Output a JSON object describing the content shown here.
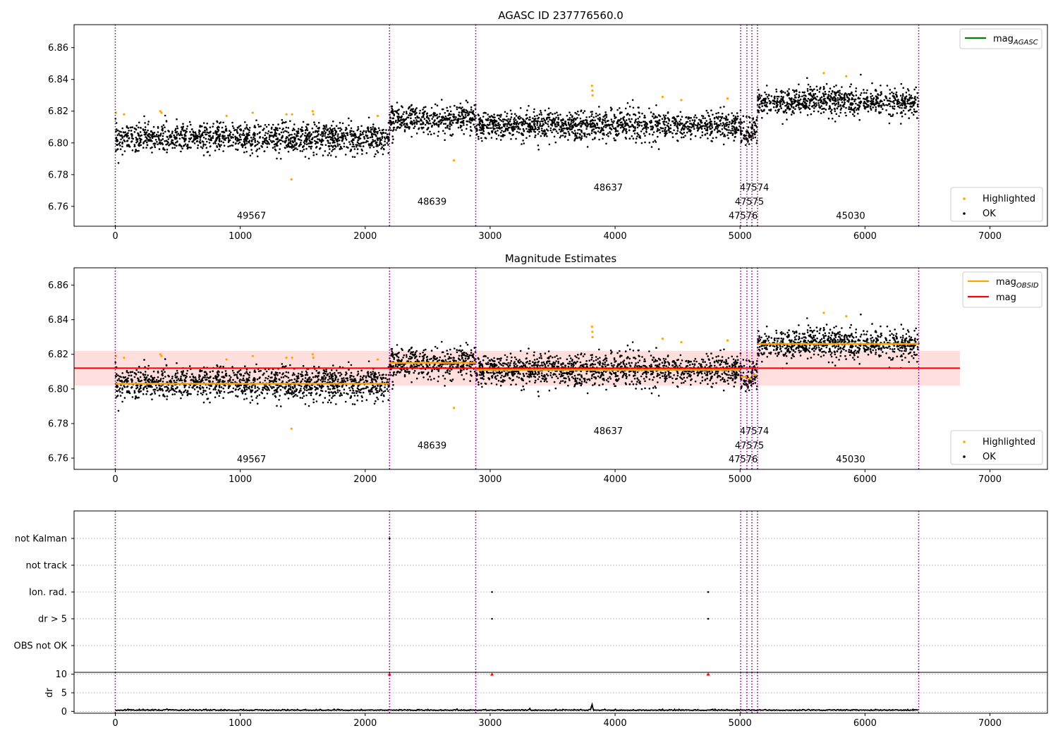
{
  "figure": {
    "title_top": "AGASC ID 237776560.0",
    "title_mid": "Magnitude Estimates"
  },
  "chart_data": [
    {
      "type": "scatter",
      "title": "AGASC ID 237776560.0",
      "xlabel": "",
      "ylabel": "",
      "xlim": [
        -330,
        7460
      ],
      "ylim": [
        6.7475,
        6.8745
      ],
      "x_ticks": [
        0,
        1000,
        2000,
        3000,
        4000,
        5000,
        6000,
        7000
      ],
      "y_ticks": [
        6.76,
        6.78,
        6.8,
        6.82,
        6.84,
        6.86
      ],
      "y_tick_labels": [
        "6.76",
        "6.78",
        "6.80",
        "6.82",
        "6.84",
        "6.86"
      ],
      "grid": false,
      "legend": {
        "upper_right": [
          {
            "label": "mag",
            "subscript": "AGASC",
            "color": "#008000",
            "kind": "line"
          }
        ],
        "lower_right": [
          {
            "label": "Highlighted",
            "color": "#ffa500",
            "kind": "dot"
          },
          {
            "label": "OK",
            "color": "#000000",
            "kind": "dot"
          }
        ]
      },
      "obs_boundaries": [
        0,
        2195,
        2885,
        5005,
        5055,
        5095,
        5140,
        6430
      ],
      "obs_labels": [
        {
          "text": "49567",
          "x": 1090,
          "y": 6.7522
        },
        {
          "text": "48639",
          "x": 2535,
          "y": 6.761
        },
        {
          "text": "48637",
          "x": 3945,
          "y": 6.77
        },
        {
          "text": "47574",
          "x": 5115,
          "y": 6.77
        },
        {
          "text": "47575",
          "x": 5075,
          "y": 6.761
        },
        {
          "text": "47576",
          "x": 5025,
          "y": 6.7522
        },
        {
          "text": "45030",
          "x": 5885,
          "y": 6.7522
        }
      ],
      "segments": [
        {
          "obsid": "49567",
          "x_range": [
            0,
            2195
          ],
          "mean": 6.803,
          "spread": 0.0045
        },
        {
          "obsid": "48639",
          "x_range": [
            2195,
            2885
          ],
          "mean": 6.815,
          "spread": 0.0045
        },
        {
          "obsid": "48637",
          "x_range": [
            2885,
            5005
          ],
          "mean": 6.811,
          "spread": 0.0045
        },
        {
          "obsid": "47576",
          "x_range": [
            5005,
            5055
          ],
          "mean": 6.807,
          "spread": 0.0045
        },
        {
          "obsid": "47575",
          "x_range": [
            5055,
            5095
          ],
          "mean": 6.806,
          "spread": 0.0045
        },
        {
          "obsid": "47574",
          "x_range": [
            5095,
            5140
          ],
          "mean": 6.808,
          "spread": 0.0045
        },
        {
          "obsid": "45030",
          "x_range": [
            5140,
            6430
          ],
          "mean": 6.826,
          "spread": 0.0045
        }
      ],
      "highlighted_points": [
        {
          "x": 5,
          "y": 6.819
        },
        {
          "x": 70,
          "y": 6.818
        },
        {
          "x": 360,
          "y": 6.82
        },
        {
          "x": 370,
          "y": 6.819
        },
        {
          "x": 890,
          "y": 6.817
        },
        {
          "x": 1100,
          "y": 6.819
        },
        {
          "x": 1370,
          "y": 6.818
        },
        {
          "x": 1410,
          "y": 6.777
        },
        {
          "x": 1415,
          "y": 6.818
        },
        {
          "x": 1580,
          "y": 6.82
        },
        {
          "x": 1585,
          "y": 6.818
        },
        {
          "x": 2100,
          "y": 6.817
        },
        {
          "x": 2710,
          "y": 6.789
        },
        {
          "x": 3815,
          "y": 6.836
        },
        {
          "x": 3818,
          "y": 6.833
        },
        {
          "x": 3820,
          "y": 6.83
        },
        {
          "x": 4380,
          "y": 6.829
        },
        {
          "x": 4530,
          "y": 6.827
        },
        {
          "x": 4900,
          "y": 6.828
        },
        {
          "x": 5670,
          "y": 6.844
        },
        {
          "x": 5850,
          "y": 6.842
        }
      ]
    },
    {
      "type": "scatter",
      "title": "Magnitude Estimates",
      "xlabel": "",
      "ylabel": "",
      "xlim": [
        -330,
        7460
      ],
      "ylim": [
        6.7535,
        6.87
      ],
      "x_ticks": [
        0,
        1000,
        2000,
        3000,
        4000,
        5000,
        6000,
        7000
      ],
      "y_ticks": [
        6.76,
        6.78,
        6.8,
        6.82,
        6.84,
        6.86
      ],
      "y_tick_labels": [
        "6.76",
        "6.78",
        "6.80",
        "6.82",
        "6.84",
        "6.86"
      ],
      "grid": false,
      "legend": {
        "upper_right": [
          {
            "label": "mag",
            "subscript": "OBSID",
            "color": "#ffa500",
            "kind": "line"
          },
          {
            "label": "mag",
            "subscript": "",
            "color": "#ff0000",
            "kind": "line"
          }
        ],
        "lower_right": [
          {
            "label": "Highlighted",
            "color": "#ffa500",
            "kind": "dot"
          },
          {
            "label": "OK",
            "color": "#000000",
            "kind": "dot"
          }
        ]
      },
      "overall_mag": {
        "value": 6.812,
        "band": [
          6.802,
          6.822
        ],
        "x_range": [
          -330,
          6760
        ],
        "color": "#ff0000"
      },
      "obs_labels": [
        {
          "text": "49567",
          "x": 1090,
          "y": 6.7575
        },
        {
          "text": "48639",
          "x": 2535,
          "y": 6.7655
        },
        {
          "text": "48637",
          "x": 3945,
          "y": 6.7738
        },
        {
          "text": "47574",
          "x": 5115,
          "y": 6.7738
        },
        {
          "text": "47575",
          "x": 5075,
          "y": 6.7655
        },
        {
          "text": "47576",
          "x": 5025,
          "y": 6.7575
        },
        {
          "text": "45030",
          "x": 5885,
          "y": 6.7575
        }
      ]
    },
    {
      "type": "scatter",
      "title": "",
      "xlabel": "",
      "ylabel": "",
      "categories": [
        "not Kalman",
        "not track",
        "Ion. rad.",
        "dr > 5",
        "OBS not OK"
      ],
      "flag_points": [
        {
          "x": 2195,
          "category": "not Kalman"
        },
        {
          "x": 3015,
          "category": "Ion. rad."
        },
        {
          "x": 4745,
          "category": "Ion. rad."
        },
        {
          "x": 3015,
          "category": "dr > 5"
        },
        {
          "x": 4745,
          "category": "dr > 5"
        }
      ],
      "grid": true
    },
    {
      "type": "line",
      "title": "",
      "xlabel": "",
      "ylabel": "dr",
      "xlim": [
        -330,
        7460
      ],
      "ylim": [
        -0.5,
        10.5
      ],
      "x_ticks": [
        0,
        1000,
        2000,
        3000,
        4000,
        5000,
        6000,
        7000
      ],
      "y_ticks": [
        0,
        5,
        10
      ],
      "y_tick_labels": [
        "0",
        "5",
        "10"
      ],
      "clipped_markers": [
        {
          "x": 2195,
          "y": 10
        },
        {
          "x": 3015,
          "y": 10
        },
        {
          "x": 4745,
          "y": 10
        }
      ],
      "spike": {
        "x": 3815,
        "y": 2
      },
      "baseline": 0.25
    }
  ],
  "colors": {
    "boundary": "#800080",
    "highlighted": "#ffa500",
    "ok": "#000000",
    "mag_agasc": "#008000",
    "mag_obsid": "#ffa500",
    "mag": "#ff0000",
    "band": "#ffdede"
  }
}
